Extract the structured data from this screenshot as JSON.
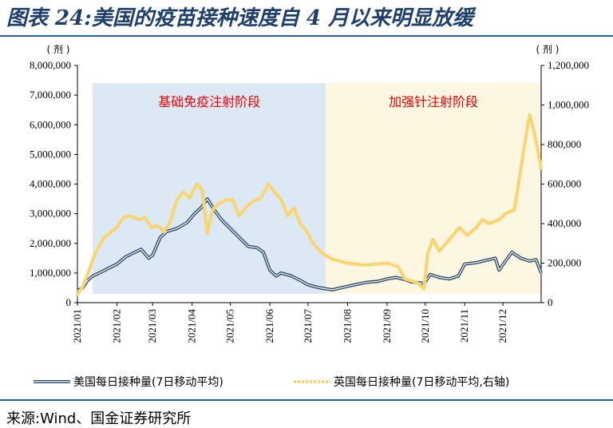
{
  "header": {
    "title": "图表 24:美国的疫苗接种速度自 4 月以来明显放缓"
  },
  "footer": {
    "source": "来源:Wind、国金证券研究所"
  },
  "chart_data": {
    "type": "line",
    "y_left": {
      "unit": "( 剂 )",
      "ylim": [
        0,
        8000000
      ],
      "tick_labels": [
        "0",
        "1,000,000",
        "2,000,000",
        "3,000,000",
        "4,000,000",
        "5,000,000",
        "6,000,000",
        "7,000,000",
        "8,000,000"
      ]
    },
    "y_right": {
      "unit": "( 剂 )",
      "ylim": [
        0,
        1200000
      ],
      "tick_labels": [
        "0",
        "200,000",
        "400,000",
        "600,000",
        "800,000",
        "1,000,000",
        "1,200,000"
      ]
    },
    "x_tick_labels": [
      "2021/01",
      "2021/02",
      "2021/03",
      "2021/04",
      "2021/05",
      "2021/06",
      "2021/07",
      "2021/08",
      "2021/09",
      "2021/10",
      "2021/11",
      "2021/12"
    ],
    "bands": [
      {
        "label": "基础免疫注射阶段",
        "start": "2021-01-13",
        "end": "2021-07-15",
        "color": "#dde8f5"
      },
      {
        "label": "加强针注射阶段",
        "start": "2021-07-15",
        "end": "2021-12-31",
        "color": "#fdf6e0"
      }
    ],
    "series": [
      {
        "name": "美国每日接种量(7日移动平均)",
        "axis": "left",
        "color": "#2d4a6b",
        "points": [
          [
            "2021-01-01",
            400000
          ],
          [
            "2021-01-05",
            500000
          ],
          [
            "2021-01-09",
            750000
          ],
          [
            "2021-01-13",
            900000
          ],
          [
            "2021-01-18",
            1000000
          ],
          [
            "2021-01-25",
            1150000
          ],
          [
            "2021-02-01",
            1300000
          ],
          [
            "2021-02-08",
            1550000
          ],
          [
            "2021-02-15",
            1700000
          ],
          [
            "2021-02-20",
            1800000
          ],
          [
            "2021-02-26",
            1500000
          ],
          [
            "2021-03-01",
            1600000
          ],
          [
            "2021-03-07",
            2200000
          ],
          [
            "2021-03-12",
            2400000
          ],
          [
            "2021-03-20",
            2500000
          ],
          [
            "2021-03-28",
            2700000
          ],
          [
            "2021-04-03",
            3000000
          ],
          [
            "2021-04-08",
            3200000
          ],
          [
            "2021-04-13",
            3500000
          ],
          [
            "2021-04-18",
            3150000
          ],
          [
            "2021-04-24",
            2800000
          ],
          [
            "2021-05-01",
            2500000
          ],
          [
            "2021-05-08",
            2200000
          ],
          [
            "2021-05-15",
            1900000
          ],
          [
            "2021-05-22",
            1850000
          ],
          [
            "2021-05-27",
            1700000
          ],
          [
            "2021-06-01",
            1100000
          ],
          [
            "2021-06-06",
            900000
          ],
          [
            "2021-06-10",
            1000000
          ],
          [
            "2021-06-18",
            900000
          ],
          [
            "2021-06-25",
            750000
          ],
          [
            "2021-07-01",
            600000
          ],
          [
            "2021-07-10",
            500000
          ],
          [
            "2021-07-20",
            430000
          ],
          [
            "2021-08-01",
            550000
          ],
          [
            "2021-08-15",
            680000
          ],
          [
            "2021-08-25",
            720000
          ],
          [
            "2021-09-01",
            800000
          ],
          [
            "2021-09-08",
            850000
          ],
          [
            "2021-09-15",
            780000
          ],
          [
            "2021-09-20",
            700000
          ],
          [
            "2021-09-30",
            650000
          ],
          [
            "2021-10-05",
            950000
          ],
          [
            "2021-10-12",
            850000
          ],
          [
            "2021-10-20",
            800000
          ],
          [
            "2021-10-27",
            900000
          ],
          [
            "2021-11-01",
            1300000
          ],
          [
            "2021-11-10",
            1350000
          ],
          [
            "2021-11-20",
            1450000
          ],
          [
            "2021-11-25",
            1500000
          ],
          [
            "2021-11-28",
            1100000
          ],
          [
            "2021-12-03",
            1400000
          ],
          [
            "2021-12-08",
            1700000
          ],
          [
            "2021-12-15",
            1500000
          ],
          [
            "2021-12-22",
            1400000
          ],
          [
            "2021-12-27",
            1450000
          ],
          [
            "2021-12-31",
            1000000
          ]
        ]
      },
      {
        "name": "英国每日接种量(7日移动平均,右轴)",
        "axis": "right",
        "color": "#f8d56e",
        "points": [
          [
            "2021-01-01",
            40000
          ],
          [
            "2021-01-05",
            80000
          ],
          [
            "2021-01-10",
            160000
          ],
          [
            "2021-01-15",
            250000
          ],
          [
            "2021-01-22",
            330000
          ],
          [
            "2021-02-01",
            380000
          ],
          [
            "2021-02-06",
            430000
          ],
          [
            "2021-02-12",
            440000
          ],
          [
            "2021-02-18",
            420000
          ],
          [
            "2021-02-23",
            430000
          ],
          [
            "2021-02-28",
            380000
          ],
          [
            "2021-03-05",
            390000
          ],
          [
            "2021-03-10",
            360000
          ],
          [
            "2021-03-15",
            410000
          ],
          [
            "2021-03-20",
            520000
          ],
          [
            "2021-03-25",
            560000
          ],
          [
            "2021-03-30",
            530000
          ],
          [
            "2021-04-05",
            600000
          ],
          [
            "2021-04-09",
            570000
          ],
          [
            "2021-04-13",
            350000
          ],
          [
            "2021-04-17",
            470000
          ],
          [
            "2021-04-22",
            500000
          ],
          [
            "2021-04-28",
            520000
          ],
          [
            "2021-05-03",
            520000
          ],
          [
            "2021-05-08",
            440000
          ],
          [
            "2021-05-13",
            480000
          ],
          [
            "2021-05-18",
            510000
          ],
          [
            "2021-05-25",
            530000
          ],
          [
            "2021-05-31",
            600000
          ],
          [
            "2021-06-06",
            550000
          ],
          [
            "2021-06-10",
            520000
          ],
          [
            "2021-06-15",
            440000
          ],
          [
            "2021-06-20",
            480000
          ],
          [
            "2021-06-25",
            400000
          ],
          [
            "2021-06-30",
            360000
          ],
          [
            "2021-07-05",
            300000
          ],
          [
            "2021-07-12",
            250000
          ],
          [
            "2021-07-20",
            220000
          ],
          [
            "2021-08-01",
            200000
          ],
          [
            "2021-08-15",
            190000
          ],
          [
            "2021-09-01",
            200000
          ],
          [
            "2021-09-10",
            180000
          ],
          [
            "2021-09-15",
            120000
          ],
          [
            "2021-09-25",
            100000
          ],
          [
            "2021-09-30",
            70000
          ],
          [
            "2021-10-03",
            250000
          ],
          [
            "2021-10-07",
            320000
          ],
          [
            "2021-10-12",
            260000
          ],
          [
            "2021-10-20",
            320000
          ],
          [
            "2021-10-28",
            380000
          ],
          [
            "2021-11-03",
            340000
          ],
          [
            "2021-11-10",
            380000
          ],
          [
            "2021-11-15",
            420000
          ],
          [
            "2021-11-20",
            400000
          ],
          [
            "2021-11-28",
            420000
          ],
          [
            "2021-12-03",
            450000
          ],
          [
            "2021-12-10",
            470000
          ],
          [
            "2021-12-18",
            800000
          ],
          [
            "2021-12-22",
            950000
          ],
          [
            "2021-12-26",
            850000
          ],
          [
            "2021-12-31",
            680000
          ]
        ]
      }
    ]
  }
}
